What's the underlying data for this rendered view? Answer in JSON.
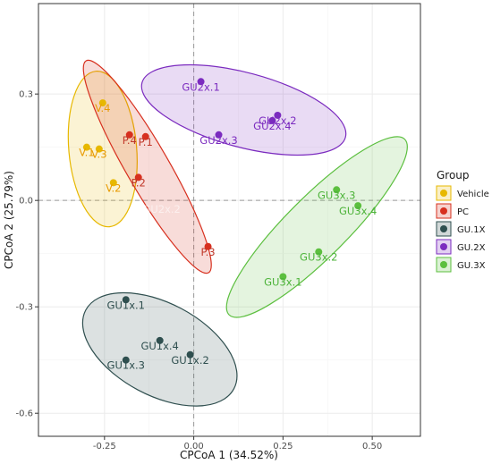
{
  "chart_data": {
    "type": "scatter",
    "title": "",
    "xlabel": "CPCoA 1 (34.52%)",
    "ylabel": "CPCoA 2 (25.79%)",
    "xlim": [
      -0.435,
      0.635
    ],
    "ylim": [
      -0.665,
      0.555
    ],
    "x_ticks": [
      -0.25,
      0.0,
      0.25,
      0.5
    ],
    "x_tick_labels": [
      "-0.25",
      "0.00",
      "0.25",
      "0.50"
    ],
    "y_ticks": [
      -0.6,
      -0.3,
      0.0,
      0.3
    ],
    "y_tick_labels": [
      "-0.6",
      "-0.3",
      "0.0",
      "0.3"
    ],
    "grid": true,
    "legend": {
      "title": "Group",
      "position": "right"
    },
    "series": [
      {
        "name": "Vehicle",
        "color": "#E7B800",
        "text_color": "#E89A00",
        "points": [
          {
            "label": "V.1",
            "x": -0.3,
            "y": 0.15
          },
          {
            "label": "V.2",
            "x": -0.225,
            "y": 0.05
          },
          {
            "label": "V.3",
            "x": -0.265,
            "y": 0.145
          },
          {
            "label": "V.4",
            "x": -0.255,
            "y": 0.275
          }
        ],
        "ellipse": {
          "cx": -0.255,
          "cy": 0.145,
          "rx": 0.095,
          "ry": 0.22,
          "angle": -5
        }
      },
      {
        "name": "PC",
        "color": "#D7301F",
        "text_color": "#C0392B",
        "points": [
          {
            "label": "P.1",
            "x": -0.135,
            "y": 0.18
          },
          {
            "label": "P.2",
            "x": -0.155,
            "y": 0.065
          },
          {
            "label": "P.3",
            "x": 0.04,
            "y": -0.13
          },
          {
            "label": "P.4",
            "x": -0.18,
            "y": 0.185
          }
        ],
        "ellipse": {
          "cx": -0.13,
          "cy": 0.095,
          "rx": 0.06,
          "ry": 0.345,
          "angle": -30
        }
      },
      {
        "name": "GU.1X",
        "color": "#2F4F4F",
        "text_color": "#2F4F4F",
        "points": [
          {
            "label": "GU1x.1",
            "x": -0.19,
            "y": -0.28
          },
          {
            "label": "GU1x.2",
            "x": -0.01,
            "y": -0.435
          },
          {
            "label": "GU1x.3",
            "x": -0.19,
            "y": -0.45
          },
          {
            "label": "GU1x.4",
            "x": -0.095,
            "y": -0.395
          }
        ],
        "ellipse": {
          "cx": -0.095,
          "cy": -0.42,
          "rx": 0.235,
          "ry": 0.13,
          "angle": 28
        }
      },
      {
        "name": "GU.2X",
        "color": "#7B2BBF",
        "text_color": "#7B2BBF",
        "points": [
          {
            "label": "GU2x.1",
            "x": 0.02,
            "y": 0.335
          },
          {
            "label": "GU2x.2",
            "x": 0.235,
            "y": 0.24
          },
          {
            "label": "GU2x.3",
            "x": 0.07,
            "y": 0.185
          },
          {
            "label": "GU2x.4",
            "x": 0.22,
            "y": 0.225
          }
        ],
        "ellipse": {
          "cx": 0.14,
          "cy": 0.255,
          "rx": 0.295,
          "ry": 0.105,
          "angle": 15
        }
      },
      {
        "name": "GU.3X",
        "color": "#5CBF3F",
        "text_color": "#4DB33A",
        "points": [
          {
            "label": "GU3x.1",
            "x": 0.25,
            "y": -0.215
          },
          {
            "label": "GU3x.2",
            "x": 0.35,
            "y": -0.145
          },
          {
            "label": "GU3x.3",
            "x": 0.4,
            "y": 0.03
          },
          {
            "label": "GU3x.4",
            "x": 0.46,
            "y": -0.015
          }
        ],
        "ellipse": {
          "cx": 0.345,
          "cy": -0.075,
          "rx": 0.085,
          "ry": 0.35,
          "angle": 45
        }
      }
    ],
    "hidden_label": {
      "text": "GU2x.2",
      "x": -0.09,
      "y": -0.035
    }
  }
}
